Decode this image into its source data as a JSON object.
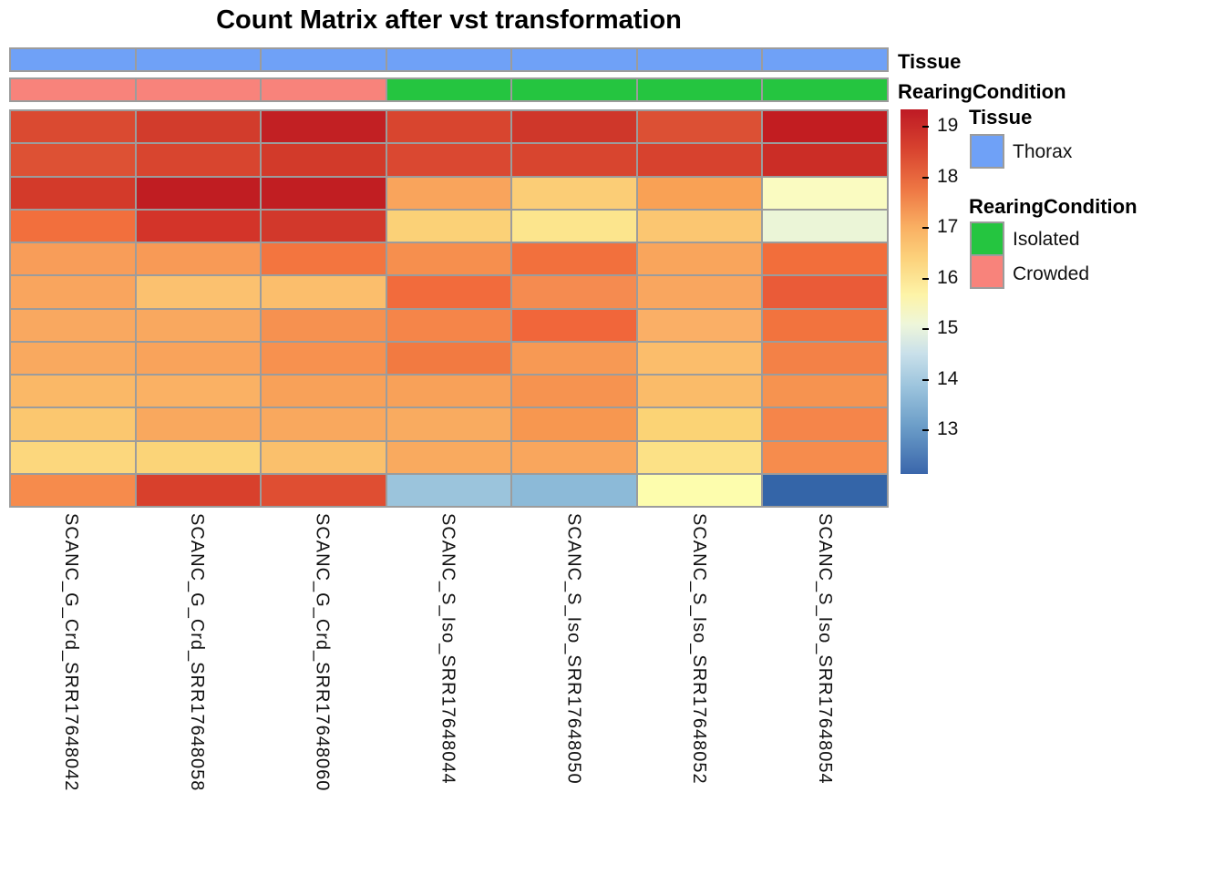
{
  "title": "Count Matrix after vst transformation",
  "annotations": {
    "tissue_label": "Tissue",
    "rearing_label": "RearingCondition",
    "tissue_colors": [
      "#6FA1F7",
      "#6FA1F7",
      "#6FA1F7",
      "#6FA1F7",
      "#6FA1F7",
      "#6FA1F7",
      "#6FA1F7"
    ],
    "rearing_colors": [
      "#F8837B",
      "#F8837B",
      "#F8837B",
      "#25C540",
      "#25C540",
      "#25C540",
      "#25C540"
    ]
  },
  "legend": {
    "tissue": {
      "title": "Tissue",
      "items": [
        {
          "label": "Thorax",
          "color": "#6FA1F7"
        }
      ]
    },
    "rearing": {
      "title": "RearingCondition",
      "items": [
        {
          "label": "Isolated",
          "color": "#25C540"
        },
        {
          "label": "Crowded",
          "color": "#F8837B"
        }
      ]
    }
  },
  "colorbar": {
    "ticks": [
      "19",
      "18",
      "17",
      "16",
      "15",
      "14",
      "13"
    ],
    "gradient": [
      "#BE1A24 0%",
      "#D8432F 11%",
      "#EE7744 22%",
      "#F9AE62 32%",
      "#FCD27C 41%",
      "#FDF4A8 51%",
      "#EEF6DA 59%",
      "#C9E0EA 67%",
      "#9CC4DD 76%",
      "#6B9DC8 87%",
      "#3A66AB 100%"
    ]
  },
  "chart_data": {
    "type": "heatmap",
    "title": "Count Matrix after vst transformation",
    "columns": [
      "SCANC_G_Crd_SRR17648042",
      "SCANC_G_Crd_SRR17648058",
      "SCANC_G_Crd_SRR17648060",
      "SCANC_S_Iso_SRR17648044",
      "SCANC_S_Iso_SRR17648050",
      "SCANC_S_Iso_SRR17648052",
      "SCANC_S_Iso_SRR17648054"
    ],
    "n_rows": 12,
    "row_labels_shown": false,
    "column_annotations": {
      "Tissue": [
        "Thorax",
        "Thorax",
        "Thorax",
        "Thorax",
        "Thorax",
        "Thorax",
        "Thorax"
      ],
      "RearingCondition": [
        "Crowded",
        "Crowded",
        "Crowded",
        "Isolated",
        "Isolated",
        "Isolated",
        "Isolated"
      ]
    },
    "colorbar_range": [
      12.2,
      19.3
    ],
    "colorbar_ticks": [
      19,
      18,
      17,
      16,
      15,
      14,
      13
    ],
    "legend_position": "right",
    "grid": true,
    "values": [
      [
        18.5,
        18.7,
        19.1,
        18.5,
        18.8,
        18.4,
        19.1
      ],
      [
        18.4,
        18.5,
        18.7,
        18.5,
        18.5,
        18.5,
        18.8
      ],
      [
        18.7,
        19.2,
        19.2,
        17.2,
        16.6,
        17.2,
        15.5
      ],
      [
        17.9,
        18.8,
        18.7,
        16.5,
        16.1,
        16.7,
        15.0
      ],
      [
        17.3,
        17.3,
        17.8,
        17.5,
        17.9,
        17.2,
        17.9
      ],
      [
        17.2,
        16.7,
        16.8,
        17.9,
        17.6,
        17.2,
        18.1
      ],
      [
        17.2,
        17.2,
        17.5,
        17.6,
        18.0,
        17.1,
        17.9
      ],
      [
        17.2,
        17.2,
        17.5,
        17.8,
        17.4,
        16.8,
        17.7
      ],
      [
        16.9,
        17.0,
        17.3,
        17.3,
        17.5,
        16.9,
        17.5
      ],
      [
        16.7,
        17.2,
        17.2,
        17.2,
        17.4,
        16.4,
        17.6
      ],
      [
        16.4,
        16.5,
        16.7,
        17.2,
        17.2,
        16.2,
        17.6
      ],
      [
        17.6,
        18.6,
        18.4,
        13.9,
        13.7,
        15.3,
        12.5
      ]
    ],
    "cell_colors": [
      [
        "#DA4A31",
        "#D23C2C",
        "#C22023",
        "#D8452F",
        "#CF372A",
        "#DC5034",
        "#C21D21"
      ],
      [
        "#DD5134",
        "#D8452F",
        "#D23A2A",
        "#DA4831",
        "#D8452F",
        "#D7422E",
        "#CB2D26"
      ],
      [
        "#D33A2A",
        "#C01D22",
        "#C11E22",
        "#F9A45C",
        "#FBCD76",
        "#F9A155",
        "#FAFBC1"
      ],
      [
        "#F26F3D",
        "#D33429",
        "#D2382B",
        "#FBD177",
        "#FCE58D",
        "#FBC671",
        "#EBF5D7"
      ],
      [
        "#F89D59",
        "#F89A56",
        "#F3753F",
        "#F68F4E",
        "#F2703D",
        "#F9A55C",
        "#F26E3B"
      ],
      [
        "#F9A55E",
        "#FBC16F",
        "#FBBE6C",
        "#F26B3C",
        "#F58B50",
        "#F9A65F",
        "#EA5B38"
      ],
      [
        "#F9A860",
        "#F9A85F",
        "#F69150",
        "#F58549",
        "#F1663A",
        "#FAAF66",
        "#F2733E"
      ],
      [
        "#F9A95F",
        "#F9A35B",
        "#F7914F",
        "#F27A41",
        "#F79954",
        "#FBBD6B",
        "#F38147"
      ],
      [
        "#FAB867",
        "#FAB164",
        "#F8A159",
        "#F8A159",
        "#F69350",
        "#FABB69",
        "#F69350"
      ],
      [
        "#FBC76F",
        "#F9A85E",
        "#F9A85E",
        "#F9AB60",
        "#F79750",
        "#FBD375",
        "#F5854A"
      ],
      [
        "#FCD77D",
        "#FBD478",
        "#FAC06C",
        "#F9AA5F",
        "#F9A65D",
        "#FCE186",
        "#F68C4D"
      ],
      [
        "#F68B4C",
        "#D8402C",
        "#DF4E32",
        "#9BC4DC",
        "#8CBAD8",
        "#FDFDAD",
        "#3465A8"
      ]
    ]
  }
}
